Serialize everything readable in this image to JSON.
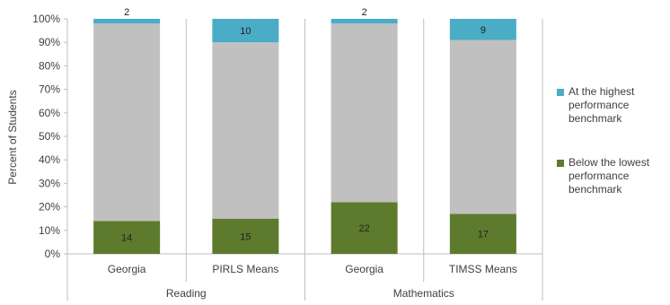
{
  "chart_data": {
    "type": "bar",
    "stacked": true,
    "ylabel": "Percent of Students",
    "ylim": [
      0,
      100
    ],
    "yticks": [
      "0%",
      "10%",
      "20%",
      "30%",
      "40%",
      "50%",
      "60%",
      "70%",
      "80%",
      "90%",
      "100%"
    ],
    "categories": [
      "Georgia",
      "PIRLS Means",
      "Georgia",
      "TIMSS Means"
    ],
    "groups": [
      {
        "label": "Reading",
        "categories": [
          0,
          1
        ]
      },
      {
        "label": "Mathematics",
        "categories": [
          2,
          3
        ]
      }
    ],
    "series": [
      {
        "name": "Below the lowest performance benchmark",
        "values": [
          14,
          15,
          22,
          17
        ],
        "color": "#5E7A2C"
      },
      {
        "name": "",
        "values": [
          84,
          75,
          76,
          74
        ],
        "color": "#C0C0C0"
      },
      {
        "name": "At the highest performance benchmark",
        "values": [
          2,
          10,
          2,
          9
        ],
        "color": "#4BACC6"
      }
    ],
    "data_labels": {
      "bottom": [
        "14",
        "15",
        "22",
        "17"
      ],
      "top": [
        "2",
        "10",
        "2",
        "9"
      ]
    },
    "legend": {
      "placement": "right",
      "items": [
        {
          "label": "At the highest performance benchmark",
          "color": "#4BACC6"
        },
        {
          "label": "Below the lowest performance benchmark",
          "color": "#5E7A2C"
        }
      ]
    },
    "grid": false
  }
}
